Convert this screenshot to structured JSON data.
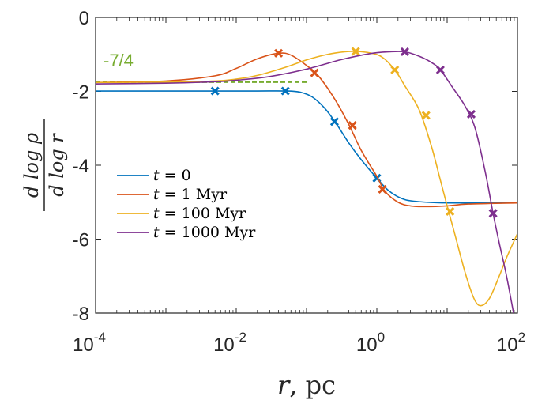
{
  "chart_data": {
    "type": "line",
    "title": "",
    "xscale": "log",
    "xlim": [
      0.0001,
      100
    ],
    "ylim": [
      -8,
      0
    ],
    "xlabel": {
      "var": "r",
      "unit": "pc"
    },
    "ylabel": {
      "numerator": "d log ρ",
      "denominator": "d log r"
    },
    "x_ticks": [
      {
        "value": 0.0001,
        "mantissa": "10",
        "exponent": "-4"
      },
      {
        "value": 0.01,
        "mantissa": "10",
        "exponent": "-2"
      },
      {
        "value": 1,
        "mantissa": "10",
        "exponent": "0"
      },
      {
        "value": 100,
        "mantissa": "10",
        "exponent": "2"
      }
    ],
    "y_ticks": [
      {
        "value": 0,
        "label": "0"
      },
      {
        "value": -2,
        "label": "-2"
      },
      {
        "value": -4,
        "label": "-4"
      },
      {
        "value": -6,
        "label": "-6"
      },
      {
        "value": -8,
        "label": "-8"
      }
    ],
    "legend_position": "lower-left",
    "series": [
      {
        "name": "t = 0",
        "legend": {
          "var": "t",
          "op": " = ",
          "value": "0"
        },
        "color": "#0072BD",
        "points": [
          [
            0.0001,
            -1.99
          ],
          [
            0.001,
            -1.99
          ],
          [
            0.005,
            -1.99
          ],
          [
            0.02,
            -1.99
          ],
          [
            0.05,
            -1.99
          ],
          [
            0.08,
            -2.02
          ],
          [
            0.12,
            -2.15
          ],
          [
            0.18,
            -2.45
          ],
          [
            0.26,
            -2.85
          ],
          [
            0.4,
            -3.4
          ],
          [
            0.6,
            -3.85
          ],
          [
            1.0,
            -4.35
          ],
          [
            1.5,
            -4.7
          ],
          [
            2.5,
            -4.93
          ],
          [
            5,
            -5.0
          ],
          [
            10,
            -5.02
          ],
          [
            20,
            -5.02
          ],
          [
            100,
            -5.02
          ]
        ],
        "markers": [
          [
            0.005,
            -1.99
          ],
          [
            0.05,
            -1.99
          ],
          [
            0.25,
            -2.82
          ],
          [
            1.0,
            -4.35
          ]
        ]
      },
      {
        "name": "t = 1 Myr",
        "legend": {
          "var": "t",
          "op": " = ",
          "value": "1 Myr"
        },
        "color": "#D95319",
        "points": [
          [
            0.0001,
            -1.76
          ],
          [
            0.001,
            -1.72
          ],
          [
            0.005,
            -1.58
          ],
          [
            0.01,
            -1.38
          ],
          [
            0.02,
            -1.12
          ],
          [
            0.04,
            -0.97
          ],
          [
            0.06,
            -1.02
          ],
          [
            0.1,
            -1.3
          ],
          [
            0.15,
            -1.6
          ],
          [
            0.25,
            -2.2
          ],
          [
            0.4,
            -2.9
          ],
          [
            0.6,
            -3.6
          ],
          [
            1.0,
            -4.3
          ],
          [
            1.3,
            -4.7
          ],
          [
            2,
            -5.0
          ],
          [
            3,
            -5.1
          ],
          [
            5,
            -5.12
          ],
          [
            10,
            -5.1
          ],
          [
            20,
            -5.05
          ],
          [
            100,
            -5.02
          ]
        ],
        "markers": [
          [
            0.04,
            -0.97
          ],
          [
            0.13,
            -1.5
          ],
          [
            0.45,
            -2.92
          ],
          [
            1.2,
            -4.65
          ]
        ]
      },
      {
        "name": "t = 100 Myr",
        "legend": {
          "var": "t",
          "op": " = ",
          "value": "100 Myr"
        },
        "color": "#EDB120",
        "points": [
          [
            0.0001,
            -1.76
          ],
          [
            0.001,
            -1.75
          ],
          [
            0.005,
            -1.72
          ],
          [
            0.01,
            -1.67
          ],
          [
            0.02,
            -1.57
          ],
          [
            0.05,
            -1.35
          ],
          [
            0.1,
            -1.15
          ],
          [
            0.2,
            -1.0
          ],
          [
            0.35,
            -0.93
          ],
          [
            0.5,
            -0.92
          ],
          [
            0.8,
            -0.96
          ],
          [
            1.2,
            -1.08
          ],
          [
            1.8,
            -1.42
          ],
          [
            2.5,
            -1.85
          ],
          [
            4,
            -2.5
          ],
          [
            6,
            -3.5
          ],
          [
            8,
            -4.4
          ],
          [
            10,
            -5.1
          ],
          [
            13,
            -5.9
          ],
          [
            18,
            -6.9
          ],
          [
            24,
            -7.6
          ],
          [
            30,
            -7.8
          ],
          [
            40,
            -7.6
          ],
          [
            55,
            -7.0
          ],
          [
            70,
            -6.5
          ],
          [
            100,
            -5.85
          ]
        ],
        "markers": [
          [
            0.5,
            -0.92
          ],
          [
            1.8,
            -1.42
          ],
          [
            5,
            -2.65
          ],
          [
            11,
            -5.25
          ]
        ]
      },
      {
        "name": "t = 1000 Myr",
        "legend": {
          "var": "t",
          "op": " = ",
          "value": "1000 Myr"
        },
        "color": "#7E2F8E",
        "points": [
          [
            0.0001,
            -1.8
          ],
          [
            0.001,
            -1.78
          ],
          [
            0.005,
            -1.74
          ],
          [
            0.01,
            -1.7
          ],
          [
            0.03,
            -1.6
          ],
          [
            0.1,
            -1.4
          ],
          [
            0.3,
            -1.15
          ],
          [
            0.8,
            -0.98
          ],
          [
            1.5,
            -0.93
          ],
          [
            2.5,
            -0.93
          ],
          [
            4,
            -1.05
          ],
          [
            6,
            -1.22
          ],
          [
            8,
            -1.42
          ],
          [
            12,
            -1.9
          ],
          [
            18,
            -2.4
          ],
          [
            25,
            -3.0
          ],
          [
            35,
            -4.2
          ],
          [
            45,
            -5.3
          ],
          [
            55,
            -6.1
          ],
          [
            70,
            -7.0
          ],
          [
            90,
            -8.1
          ]
        ],
        "markers": [
          [
            2.5,
            -0.93
          ],
          [
            8,
            -1.42
          ],
          [
            22,
            -2.62
          ],
          [
            45,
            -5.3
          ]
        ]
      }
    ],
    "reference_line": {
      "label": "-7/4",
      "value": -1.75,
      "x_range": [
        0.0001,
        0.1
      ],
      "color": "#77AC30",
      "style": "dashed"
    }
  }
}
